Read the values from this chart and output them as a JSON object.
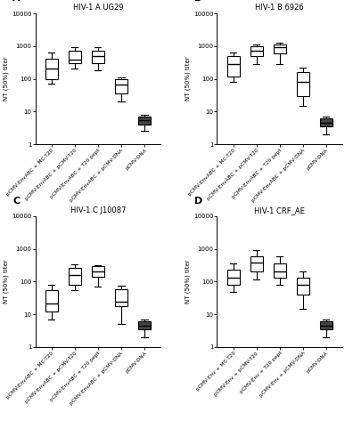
{
  "panels": [
    {
      "label": "A",
      "title": "HIV-1 A UG29",
      "ylabel": "NT (50%) titer",
      "ylim": [
        1,
        10000
      ],
      "yticks": [
        1,
        10,
        100,
        1000,
        10000
      ],
      "groups": [
        {
          "whislo": 70,
          "q1": 100,
          "med": 200,
          "q3": 400,
          "whishi": 650,
          "filled": false
        },
        {
          "whislo": 200,
          "q1": 300,
          "med": 380,
          "q3": 700,
          "whishi": 950,
          "filled": false
        },
        {
          "whislo": 180,
          "q1": 300,
          "med": 500,
          "q3": 700,
          "whishi": 900,
          "filled": false
        },
        {
          "whislo": 20,
          "q1": 35,
          "med": 65,
          "q3": 100,
          "whishi": 110,
          "filled": false
        },
        {
          "whislo": 2.5,
          "q1": 4,
          "med": 5.5,
          "q3": 7,
          "whishi": 8,
          "filled": true
        }
      ]
    },
    {
      "label": "B",
      "title": "HIV-1 B 6926",
      "ylabel": "NT (50%) titer",
      "ylim": [
        1,
        10000
      ],
      "yticks": [
        1,
        10,
        100,
        1000,
        10000
      ],
      "groups": [
        {
          "whislo": 80,
          "q1": 120,
          "med": 280,
          "q3": 500,
          "whishi": 650,
          "filled": false
        },
        {
          "whislo": 280,
          "q1": 500,
          "med": 700,
          "q3": 1000,
          "whishi": 1100,
          "filled": false
        },
        {
          "whislo": 280,
          "q1": 600,
          "med": 900,
          "q3": 1100,
          "whishi": 1300,
          "filled": false
        },
        {
          "whislo": 15,
          "q1": 30,
          "med": 80,
          "q3": 160,
          "whishi": 220,
          "filled": false
        },
        {
          "whislo": 2.0,
          "q1": 3.5,
          "med": 4.5,
          "q3": 6,
          "whishi": 7,
          "filled": true
        }
      ]
    },
    {
      "label": "C",
      "title": "HIV-1 C J10087",
      "ylabel": "NT (50%) titer",
      "ylim": [
        1,
        10000
      ],
      "yticks": [
        1,
        10,
        100,
        1000,
        10000
      ],
      "groups": [
        {
          "whislo": 7,
          "q1": 12,
          "med": 22,
          "q3": 55,
          "whishi": 80,
          "filled": false
        },
        {
          "whislo": 55,
          "q1": 80,
          "med": 160,
          "q3": 270,
          "whishi": 330,
          "filled": false
        },
        {
          "whislo": 70,
          "q1": 140,
          "med": 200,
          "q3": 290,
          "whishi": 320,
          "filled": false
        },
        {
          "whislo": 5,
          "q1": 18,
          "med": 25,
          "q3": 60,
          "whishi": 75,
          "filled": false
        },
        {
          "whislo": 2.0,
          "q1": 3.5,
          "med": 4.5,
          "q3": 6,
          "whishi": 7,
          "filled": true
        }
      ]
    },
    {
      "label": "D",
      "title": "HIV-1 CRF_AE",
      "ylabel": "NT (50%) titer",
      "ylim": [
        1,
        10000
      ],
      "yticks": [
        1,
        10,
        100,
        1000,
        10000
      ],
      "groups": [
        {
          "whislo": 50,
          "q1": 80,
          "med": 130,
          "q3": 230,
          "whishi": 350,
          "filled": false
        },
        {
          "whislo": 120,
          "q1": 200,
          "med": 380,
          "q3": 600,
          "whishi": 900,
          "filled": false
        },
        {
          "whislo": 80,
          "q1": 130,
          "med": 200,
          "q3": 360,
          "whishi": 600,
          "filled": false
        },
        {
          "whislo": 15,
          "q1": 40,
          "med": 80,
          "q3": 130,
          "whishi": 200,
          "filled": false
        },
        {
          "whislo": 2.0,
          "q1": 3.5,
          "med": 4.5,
          "q3": 6,
          "whishi": 7,
          "filled": true
        }
      ]
    }
  ],
  "tick_labels_abc": [
    "pCMV-EnvABC + MC-T20",
    "pCMV-EnvABC + pCMV-T20",
    "pCMV-EnvABC + T20 pept",
    "pCMV-EnvABC + pCMV-DNA",
    "pCMV-DNA"
  ],
  "tick_labels_d": [
    "pCMV-Env + MC-T20",
    "pCMV-Env + pCMV-T20",
    "pCMV-Env + T20 pept",
    "pCMV-Env + pCMV-DNA",
    "pCMV-DNA"
  ],
  "box_facecolor": "white",
  "box_filled_color": "#444444",
  "line_color": "black",
  "fig_background": "white",
  "ax_background": "white"
}
